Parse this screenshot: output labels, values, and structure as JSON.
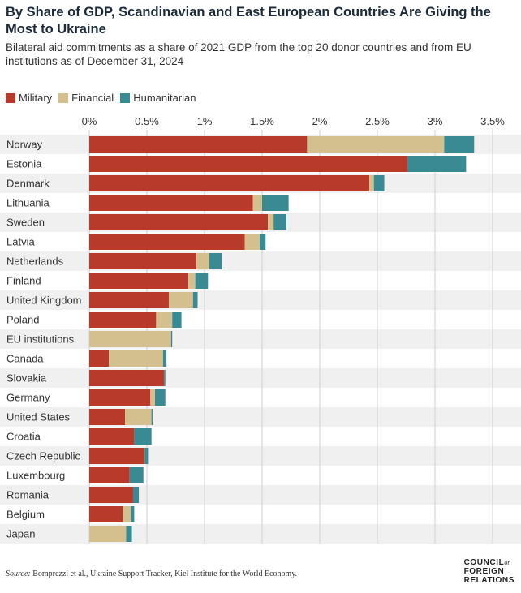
{
  "header": {
    "title": "By Share of GDP, Scandinavian and East European Countries Are Giving the Most to Ukraine",
    "subtitle": "Bilateral aid commitments as a share of 2021 GDP from the top 20 donor countries and from EU institutions as of December 31, 2024"
  },
  "legend": {
    "military": "Military",
    "financial": "Financial",
    "humanitarian": "Humanitarian"
  },
  "colors": {
    "military": "#b83a2b",
    "financial": "#d4bf8e",
    "humanitarian": "#3a8a94",
    "grid": "#cfcfcf",
    "row_alt": "#f0f0f0"
  },
  "chart_data": {
    "type": "bar",
    "orientation": "horizontal",
    "stacked": true,
    "title": "By Share of GDP, Scandinavian and East European Countries Are Giving the Most to Ukraine",
    "xlim": [
      0,
      3.5
    ],
    "x_ticks": [
      0,
      0.5,
      1,
      1.5,
      2,
      2.5,
      3,
      3.5
    ],
    "x_tick_labels": [
      "0%",
      "0.5%",
      "1%",
      "1.5%",
      "2%",
      "2.5%",
      "3%",
      "3.5%"
    ],
    "x_axis_position": "top",
    "grid": true,
    "legend_position": "top-left",
    "categories": [
      "Norway",
      "Estonia",
      "Denmark",
      "Lithuania",
      "Sweden",
      "Latvia",
      "Netherlands",
      "Finland",
      "United Kingdom",
      "Poland",
      "EU institutions",
      "Canada",
      "Slovakia",
      "Germany",
      "United States",
      "Croatia",
      "Czech Republic",
      "Luxembourg",
      "Romania",
      "Belgium",
      "Japan"
    ],
    "series": [
      {
        "name": "Military",
        "values": [
          1.89,
          2.76,
          2.43,
          1.42,
          1.55,
          1.35,
          0.93,
          0.86,
          0.69,
          0.58,
          0.0,
          0.17,
          0.65,
          0.53,
          0.31,
          0.39,
          0.48,
          0.35,
          0.38,
          0.29,
          0.0
        ]
      },
      {
        "name": "Financial",
        "values": [
          1.19,
          0.0,
          0.04,
          0.08,
          0.05,
          0.13,
          0.11,
          0.06,
          0.21,
          0.14,
          0.71,
          0.47,
          0.0,
          0.04,
          0.23,
          0.0,
          0.0,
          0.0,
          0.0,
          0.07,
          0.32
        ]
      },
      {
        "name": "Humanitarian",
        "values": [
          0.26,
          0.51,
          0.09,
          0.23,
          0.11,
          0.05,
          0.11,
          0.11,
          0.04,
          0.08,
          0.01,
          0.03,
          0.01,
          0.09,
          0.01,
          0.15,
          0.03,
          0.12,
          0.05,
          0.03,
          0.05
        ]
      }
    ]
  },
  "footer": {
    "source_label": "Source:",
    "source_text": "Bomprezzi et al., Ukraine Support Tracker, Kiel Institute for the World Economy.",
    "logo_line1": "COUNCIL",
    "logo_on": "on",
    "logo_line2": "FOREIGN",
    "logo_line3": "RELATIONS"
  }
}
